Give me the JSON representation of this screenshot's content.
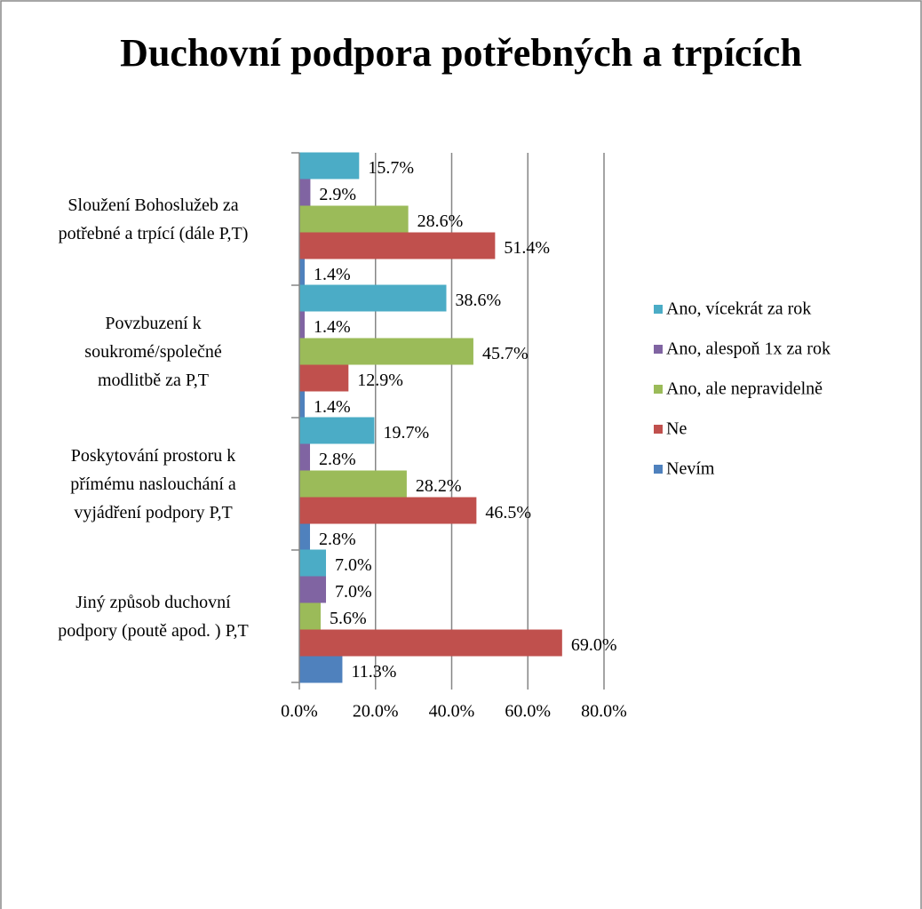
{
  "chart_data": {
    "type": "barh",
    "title": "Duchovní podpora potřebných a trpících",
    "categories": [
      "Sloužení Bohoslužeb za\npotřebné a trpící (dále P,T)",
      "Povzbuzení k\nsoukromé/společné\nmodlitbě za P,T",
      "Poskytování prostoru k\npřímému naslouchání a\nvyjádření podpory P,T",
      "Jiný způsob duchovní\npodpory (poutě apod. ) P,T"
    ],
    "series": [
      {
        "name": "Ano, vícekrát za rok",
        "color": "#4bacc6",
        "values": [
          15.7,
          38.6,
          19.7,
          7.0
        ],
        "value_labels": [
          "15.7%",
          "38.6%",
          "19.7%",
          "7.0%"
        ]
      },
      {
        "name": "Ano, alespoň 1x za rok",
        "color": "#8064a2",
        "values": [
          2.9,
          1.4,
          2.8,
          7.0
        ],
        "value_labels": [
          "2.9%",
          "1.4%",
          "2.8%",
          "7.0%"
        ]
      },
      {
        "name": "Ano, ale nepravidelně",
        "color": "#9bbb59",
        "values": [
          28.6,
          45.7,
          28.2,
          5.6
        ],
        "value_labels": [
          "28.6%",
          "45.7%",
          "28.2%",
          "5.6%"
        ]
      },
      {
        "name": "Ne",
        "color": "#c0504d",
        "values": [
          51.4,
          12.9,
          46.5,
          69.0
        ],
        "value_labels": [
          "51.4%",
          "12.9%",
          "46.5%",
          "69.0%"
        ]
      },
      {
        "name": "Nevím",
        "color": "#4f81bd",
        "values": [
          1.4,
          1.4,
          2.8,
          11.3
        ],
        "value_labels": [
          "1.4%",
          "1.4%",
          "2.8%",
          "11.3%"
        ]
      }
    ],
    "xlim": [
      0,
      80
    ],
    "xticks": [
      {
        "value": 0,
        "label": "0.0%"
      },
      {
        "value": 20,
        "label": "20.0%"
      },
      {
        "value": 40,
        "label": "40.0%"
      },
      {
        "value": 60,
        "label": "60.0%"
      },
      {
        "value": 80,
        "label": "80.0%"
      }
    ],
    "grid": true,
    "legend": "right"
  }
}
